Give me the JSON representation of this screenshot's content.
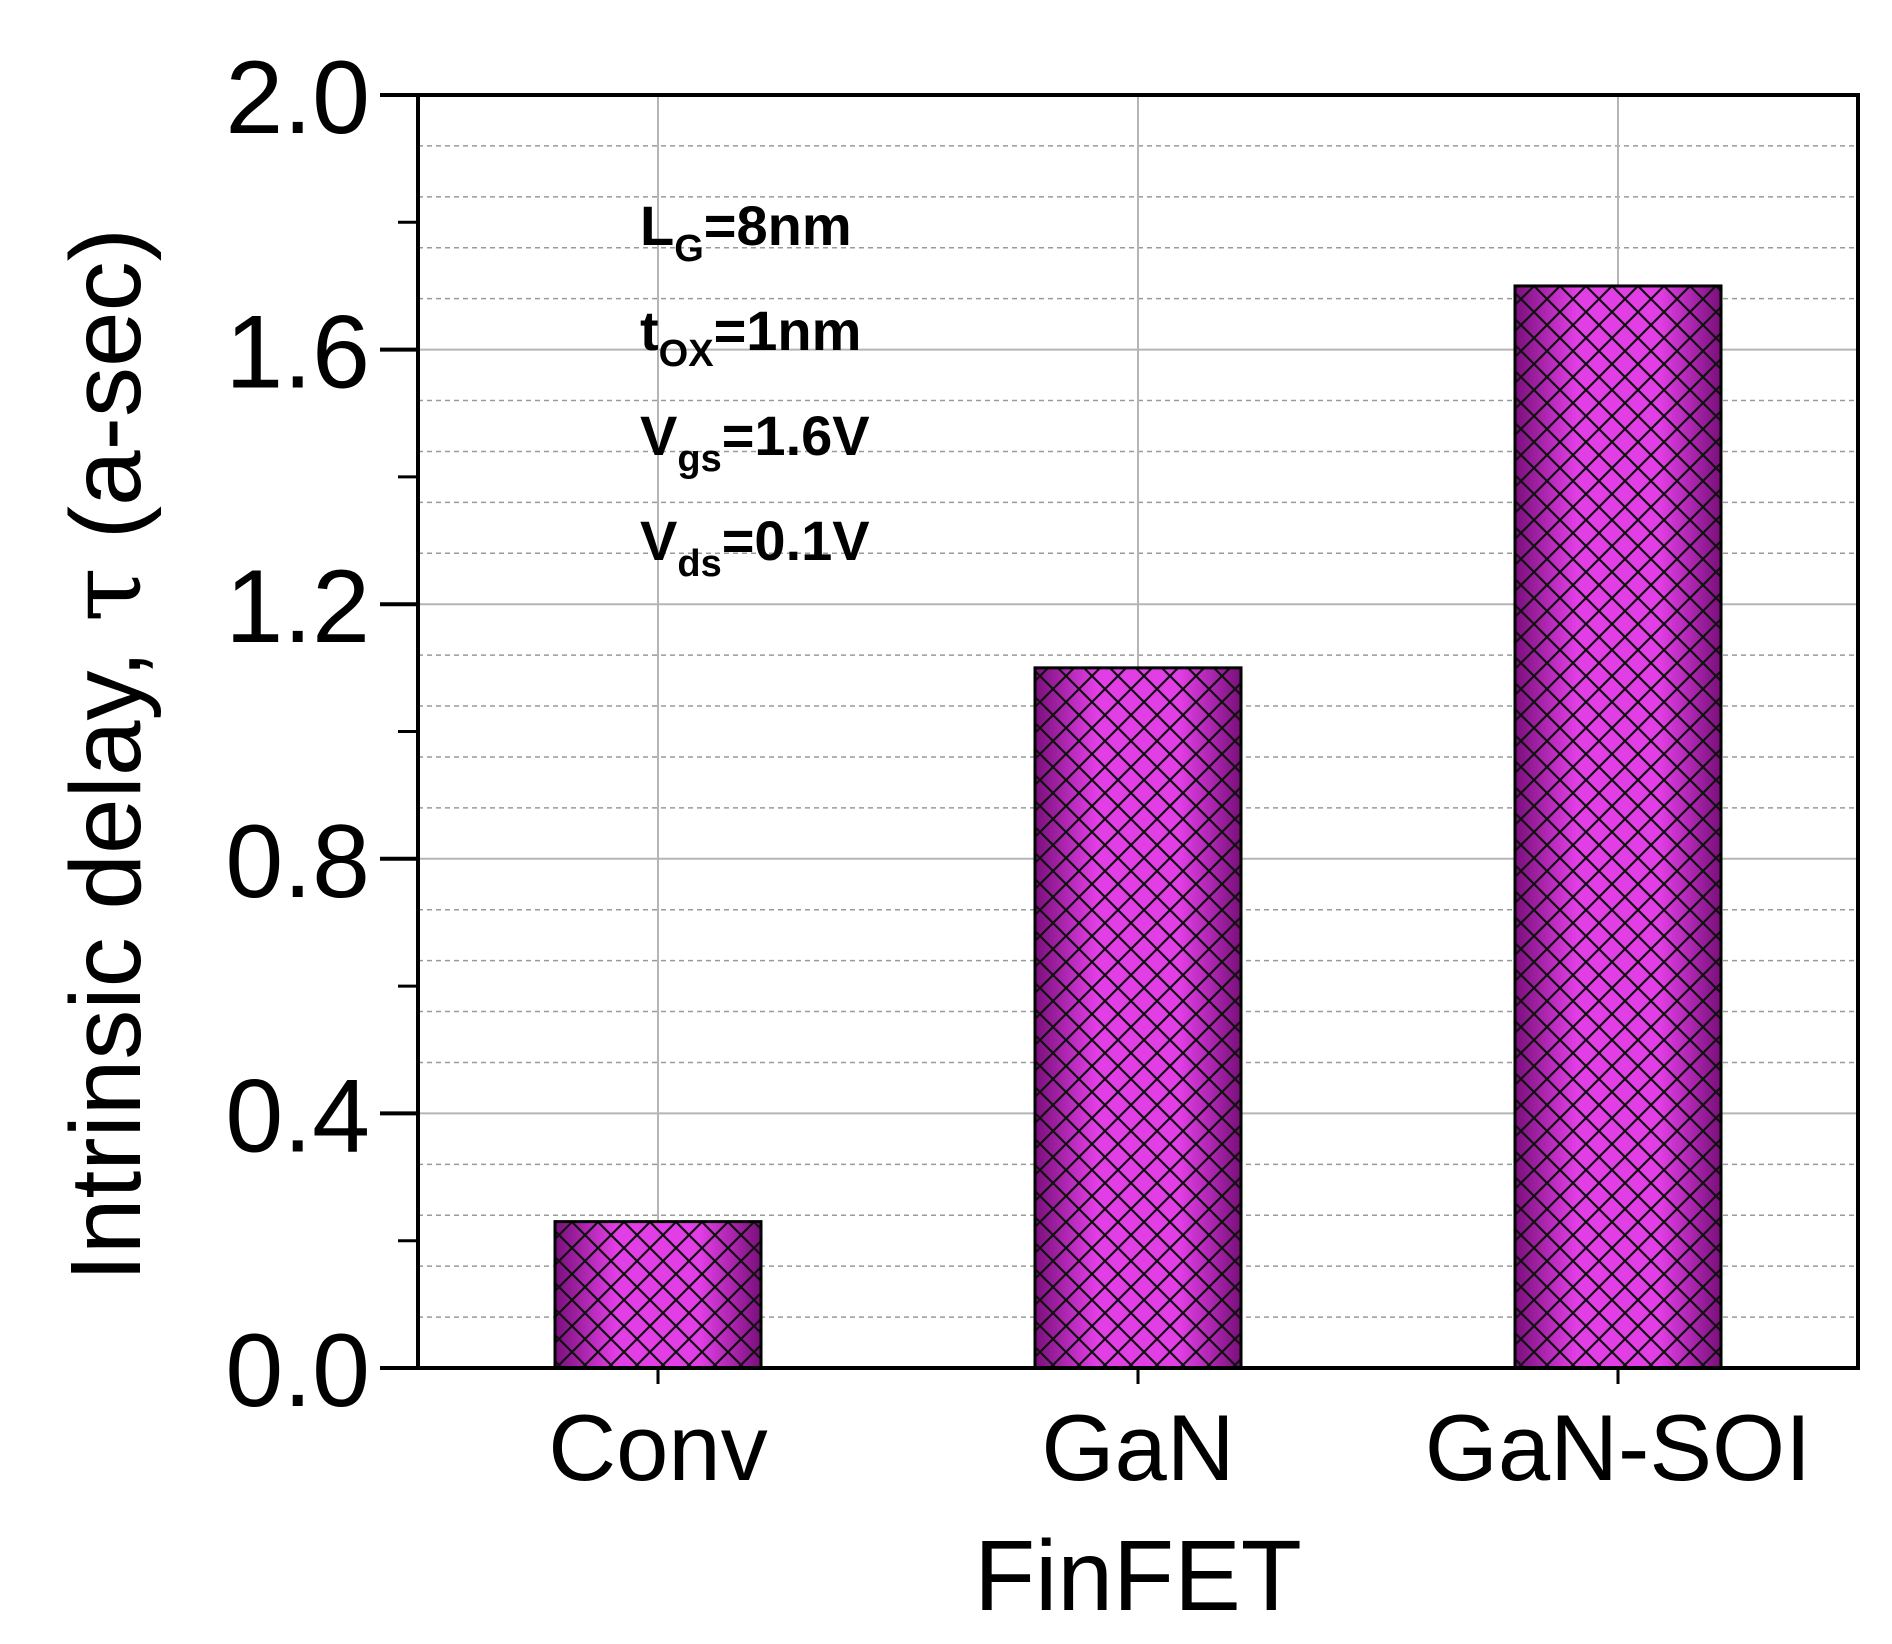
{
  "chart_data": {
    "type": "bar",
    "title": "",
    "xlabel": "FinFET",
    "ylabel_main": "Intrinsic delay, ",
    "ylabel_symbol": "τ",
    "ylabel_unit": " (a-sec)",
    "categories": [
      "Conv",
      "GaN",
      "GaN-SOI"
    ],
    "values": [
      0.23,
      1.1,
      1.7
    ],
    "ylim": [
      0,
      2.0
    ],
    "yticks": [
      "0.0",
      "0.4",
      "0.8",
      "1.2",
      "1.6",
      "2.0"
    ],
    "ytick_values": [
      0,
      0.4,
      0.8,
      1.2,
      1.6,
      2.0
    ],
    "minor_grid_values": [
      0.08,
      0.16,
      0.24,
      0.32,
      0.48,
      0.56,
      0.64,
      0.72,
      0.88,
      0.96,
      1.04,
      1.12,
      1.28,
      1.36,
      1.44,
      1.52,
      1.68,
      1.76,
      1.84,
      1.92
    ],
    "grid": true,
    "bar_color": "#e23ee6",
    "bar_dark_color": "#7a0f7c",
    "hatch": "crosshatch",
    "annotations": [
      {
        "main": "L",
        "sub": "G",
        "rest": "=8nm"
      },
      {
        "main": "t",
        "sub": "OX",
        "rest": "=1nm"
      },
      {
        "main": "V",
        "sub": "gs",
        "rest": "=1.6V"
      },
      {
        "main": "V",
        "sub": "ds",
        "rest": "=0.1V"
      }
    ]
  }
}
